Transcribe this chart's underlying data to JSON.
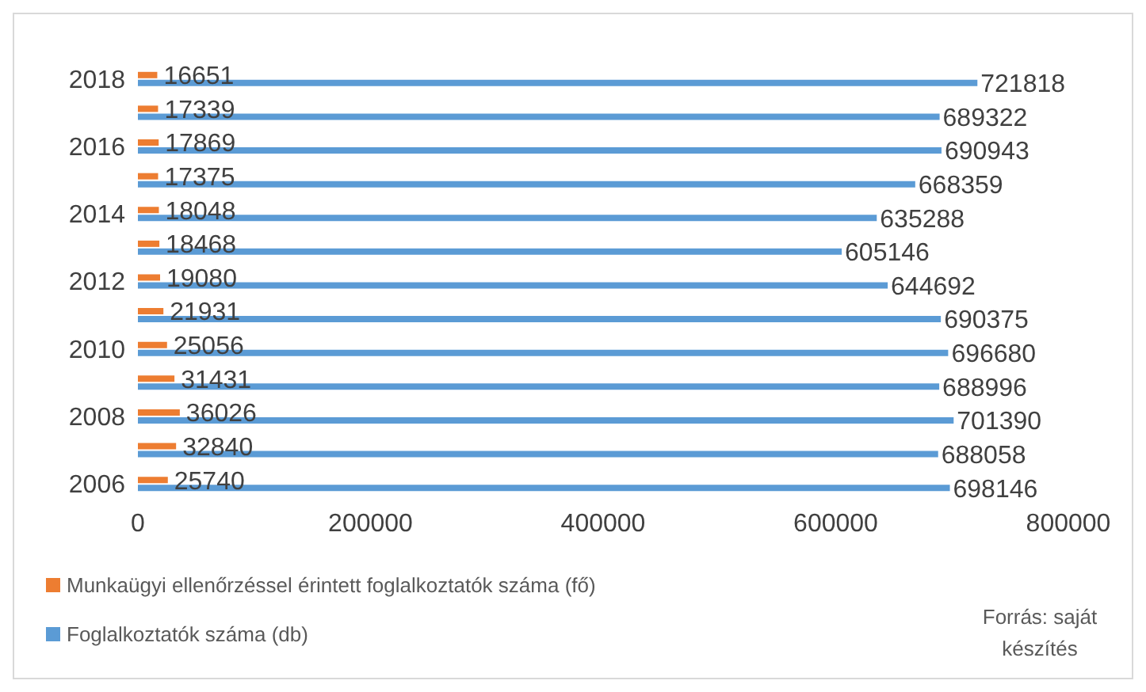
{
  "chart_data": {
    "type": "bar",
    "orientation": "horizontal",
    "categories": [
      "2018",
      null,
      "2016",
      null,
      "2014",
      null,
      "2012",
      null,
      "2010",
      null,
      "2008",
      null,
      "2006"
    ],
    "series": [
      {
        "name": "Munkaügyi ellenőrzéssel érintett foglalkoztatók száma (fő)",
        "color": "#ed7d31",
        "values": [
          16651,
          17339,
          17869,
          17375,
          18048,
          18468,
          19080,
          21931,
          25056,
          31431,
          36026,
          32840,
          25740
        ]
      },
      {
        "name": "Foglalkoztatók száma (db)",
        "color": "#5b9bd5",
        "values": [
          721818,
          689322,
          690943,
          668359,
          635288,
          605146,
          644692,
          690375,
          696680,
          688996,
          701390,
          688058,
          698146
        ]
      }
    ],
    "xlim": [
      0,
      800000
    ],
    "xticks": [
      0,
      200000,
      400000,
      600000,
      800000
    ],
    "grid": false,
    "legend": "bottom left",
    "data_labels": true,
    "annotations": [
      "Forrás: saját készítés"
    ]
  }
}
